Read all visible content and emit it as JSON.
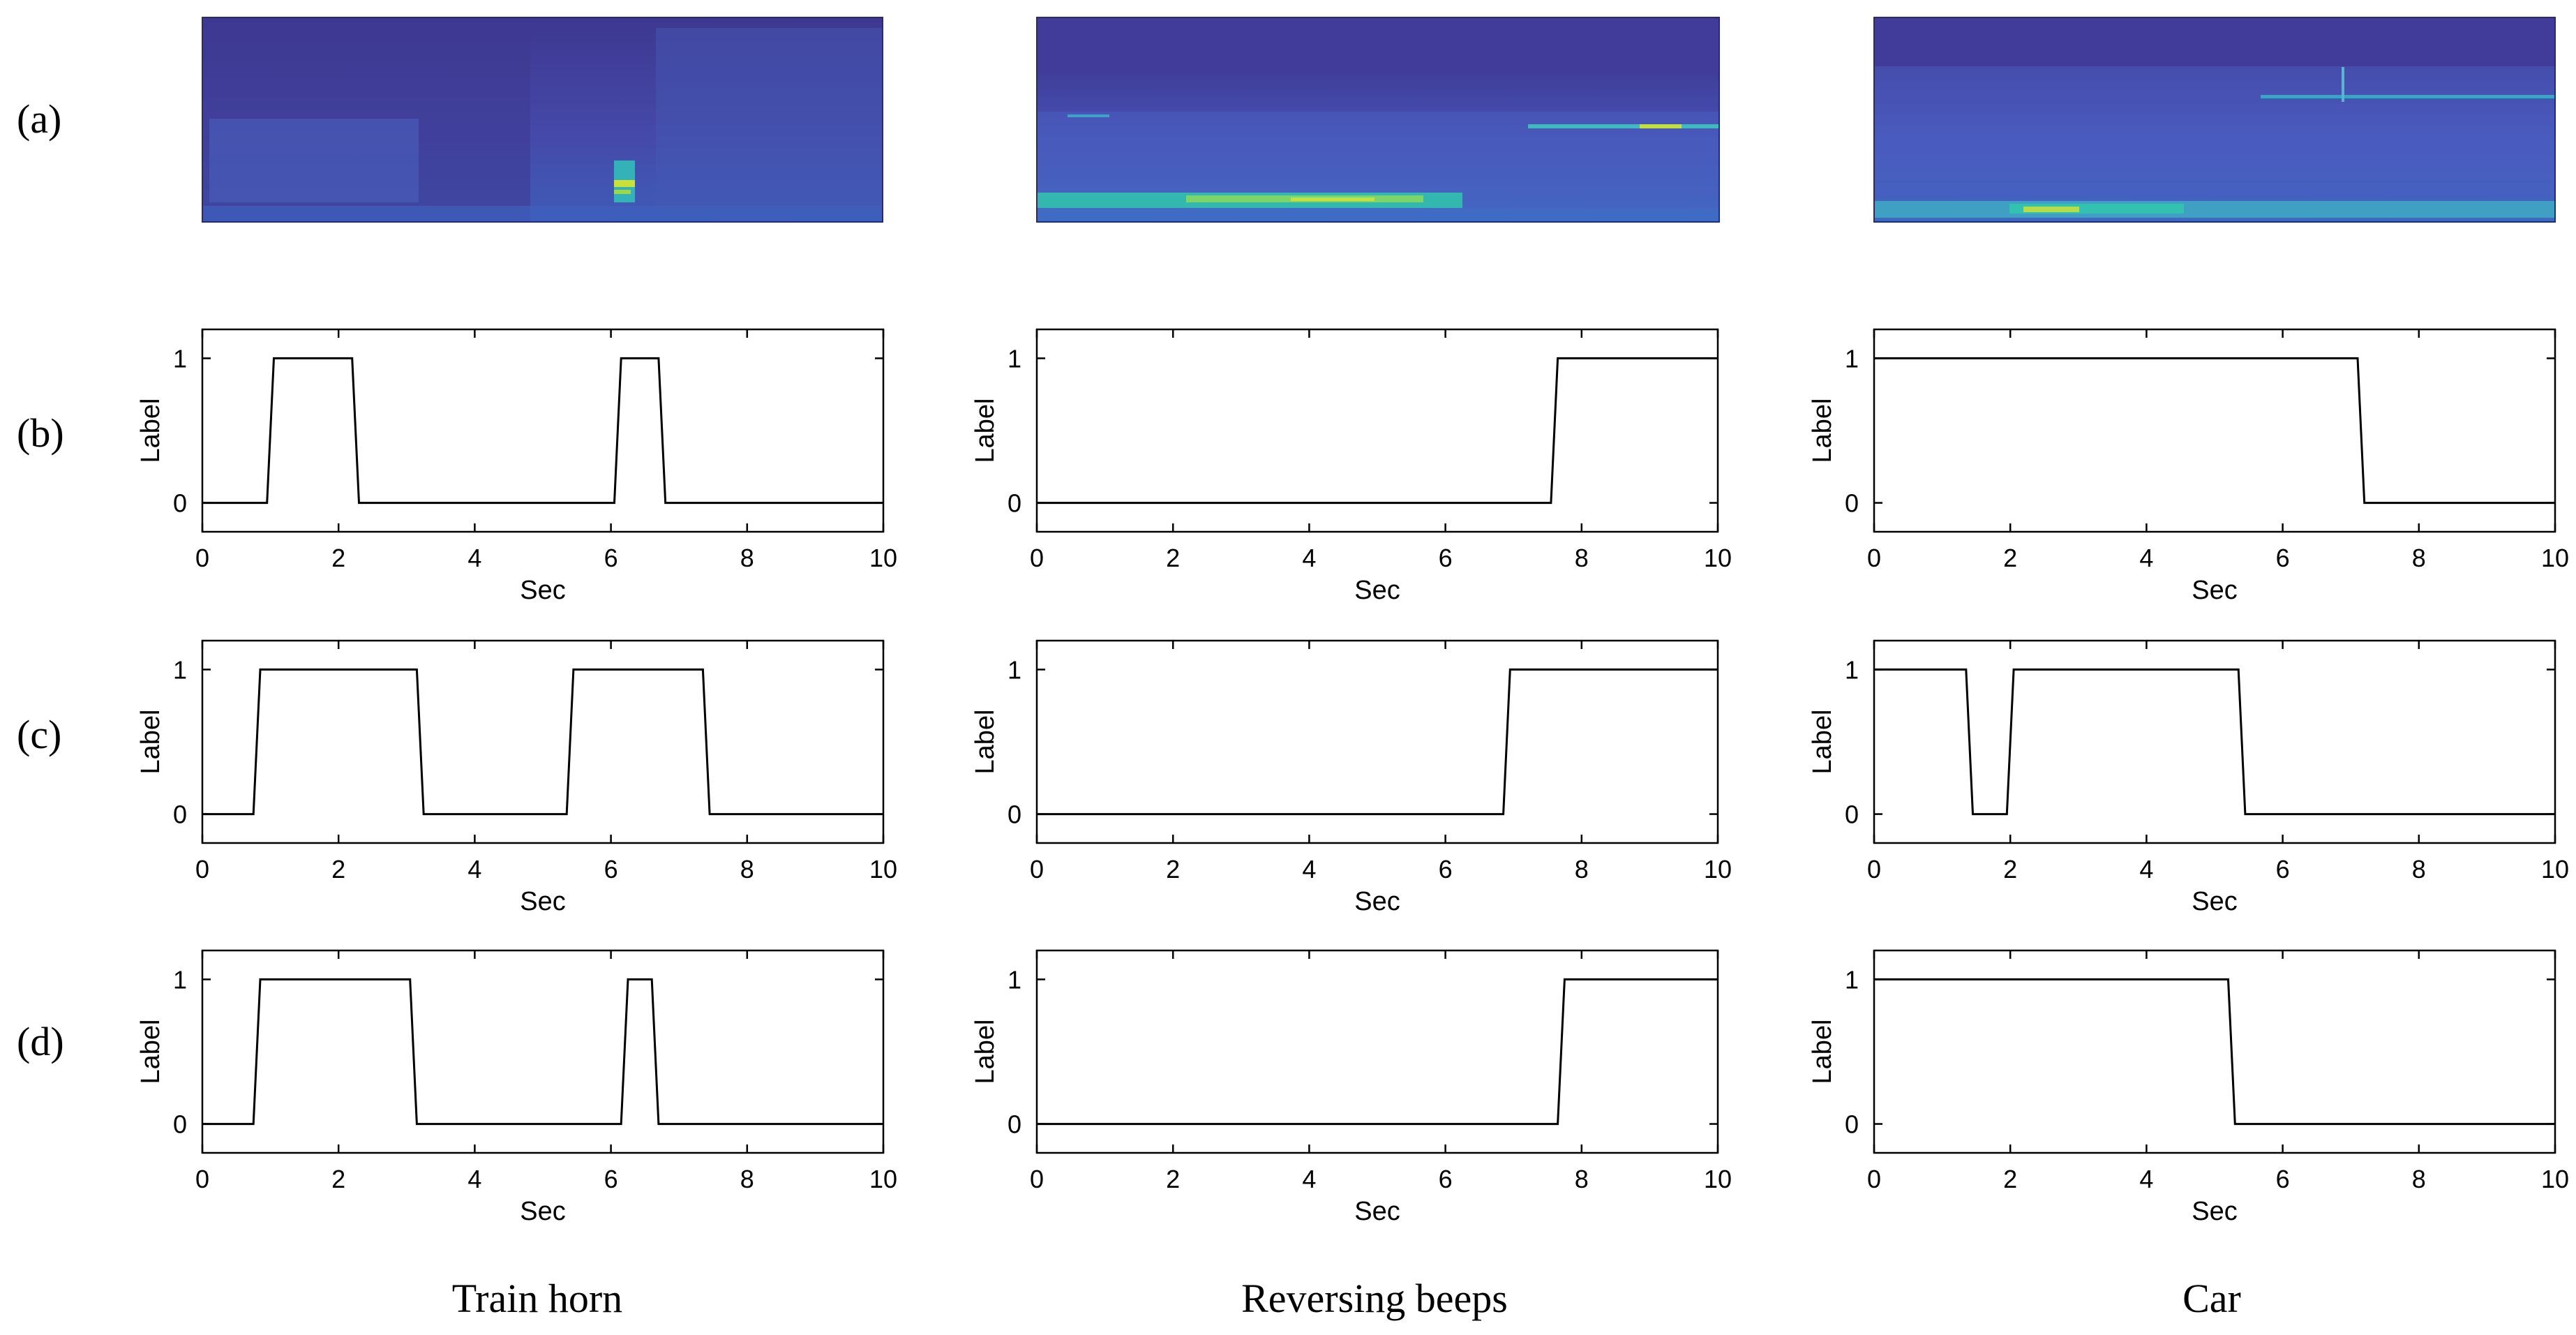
{
  "row_labels": [
    "(a)",
    "(b)",
    "(c)",
    "(d)"
  ],
  "column_titles": [
    "Train horn",
    "Reversing beeps",
    "Car"
  ],
  "chart_data": [
    {
      "type": "line",
      "column": "Train horn",
      "row": "(b)",
      "xlabel": "Sec",
      "ylabel": "Label",
      "xlim": [
        0,
        10
      ],
      "ylim": [
        -0.2,
        1.2
      ],
      "xticks": [
        0,
        2,
        4,
        6,
        8,
        10
      ],
      "yticks": [
        0,
        1
      ],
      "x": [
        0,
        0.95,
        1.05,
        2.2,
        2.3,
        6.05,
        6.15,
        6.7,
        6.8,
        10
      ],
      "y": [
        0,
        0,
        1,
        1,
        0,
        0,
        1,
        1,
        0,
        0
      ]
    },
    {
      "type": "line",
      "column": "Reversing beeps",
      "row": "(b)",
      "xlabel": "Sec",
      "ylabel": "Label",
      "xlim": [
        0,
        10
      ],
      "ylim": [
        -0.2,
        1.2
      ],
      "xticks": [
        0,
        2,
        4,
        6,
        8,
        10
      ],
      "yticks": [
        0,
        1
      ],
      "x": [
        0,
        7.55,
        7.65,
        10
      ],
      "y": [
        0,
        0,
        1,
        1
      ]
    },
    {
      "type": "line",
      "column": "Car",
      "row": "(b)",
      "xlabel": "Sec",
      "ylabel": "Label",
      "xlim": [
        0,
        10
      ],
      "ylim": [
        -0.2,
        1.2
      ],
      "xticks": [
        0,
        2,
        4,
        6,
        8,
        10
      ],
      "yticks": [
        0,
        1
      ],
      "x": [
        0,
        7.1,
        7.2,
        10
      ],
      "y": [
        1,
        1,
        0,
        0
      ]
    },
    {
      "type": "line",
      "column": "Train horn",
      "row": "(c)",
      "xlabel": "Sec",
      "ylabel": "Label",
      "xlim": [
        0,
        10
      ],
      "ylim": [
        -0.2,
        1.2
      ],
      "xticks": [
        0,
        2,
        4,
        6,
        8,
        10
      ],
      "yticks": [
        0,
        1
      ],
      "x": [
        0,
        0.75,
        0.85,
        3.15,
        3.25,
        5.35,
        5.45,
        7.35,
        7.45,
        10
      ],
      "y": [
        0,
        0,
        1,
        1,
        0,
        0,
        1,
        1,
        0,
        0
      ]
    },
    {
      "type": "line",
      "column": "Reversing beeps",
      "row": "(c)",
      "xlabel": "Sec",
      "ylabel": "Label",
      "xlim": [
        0,
        10
      ],
      "ylim": [
        -0.2,
        1.2
      ],
      "xticks": [
        0,
        2,
        4,
        6,
        8,
        10
      ],
      "yticks": [
        0,
        1
      ],
      "x": [
        0,
        6.85,
        6.95,
        10
      ],
      "y": [
        0,
        0,
        1,
        1
      ]
    },
    {
      "type": "line",
      "column": "Car",
      "row": "(c)",
      "xlabel": "Sec",
      "ylabel": "Label",
      "xlim": [
        0,
        10
      ],
      "ylim": [
        -0.2,
        1.2
      ],
      "xticks": [
        0,
        2,
        4,
        6,
        8,
        10
      ],
      "yticks": [
        0,
        1
      ],
      "x": [
        0,
        1.35,
        1.45,
        1.95,
        2.05,
        5.35,
        5.45,
        10
      ],
      "y": [
        1,
        1,
        0,
        0,
        1,
        1,
        0,
        0
      ]
    },
    {
      "type": "line",
      "column": "Train horn",
      "row": "(d)",
      "xlabel": "Sec",
      "ylabel": "Label",
      "xlim": [
        0,
        10
      ],
      "ylim": [
        -0.2,
        1.2
      ],
      "xticks": [
        0,
        2,
        4,
        6,
        8,
        10
      ],
      "yticks": [
        0,
        1
      ],
      "x": [
        0,
        0.75,
        0.85,
        3.05,
        3.15,
        6.15,
        6.25,
        6.6,
        6.7,
        10
      ],
      "y": [
        0,
        0,
        1,
        1,
        0,
        0,
        1,
        1,
        0,
        0
      ]
    },
    {
      "type": "line",
      "column": "Reversing beeps",
      "row": "(d)",
      "xlabel": "Sec",
      "ylabel": "Label",
      "xlim": [
        0,
        10
      ],
      "ylim": [
        -0.2,
        1.2
      ],
      "xticks": [
        0,
        2,
        4,
        6,
        8,
        10
      ],
      "yticks": [
        0,
        1
      ],
      "x": [
        0,
        7.65,
        7.75,
        10
      ],
      "y": [
        0,
        0,
        1,
        1
      ]
    },
    {
      "type": "line",
      "column": "Car",
      "row": "(d)",
      "xlabel": "Sec",
      "ylabel": "Label",
      "xlim": [
        0,
        10
      ],
      "ylim": [
        -0.2,
        1.2
      ],
      "xticks": [
        0,
        2,
        4,
        6,
        8,
        10
      ],
      "yticks": [
        0,
        1
      ],
      "x": [
        0,
        5.2,
        5.3,
        10
      ],
      "y": [
        1,
        1,
        0,
        0
      ]
    }
  ],
  "spectrograms": [
    {
      "column": "Train horn",
      "colormap": [
        "#3b3a94",
        "#4a58c4",
        "#2f8fd6",
        "#33c2b0",
        "#c9e03a"
      ],
      "background": "#413c9a"
    },
    {
      "column": "Reversing beeps",
      "colormap": [
        "#3b3a94",
        "#4a58c4",
        "#2f8fd6",
        "#33c2b0",
        "#c9e03a"
      ],
      "background": "#413c9a"
    },
    {
      "column": "Car",
      "colormap": [
        "#3b3a94",
        "#4a58c4",
        "#2f8fd6",
        "#33c2b0",
        "#c9e03a"
      ],
      "background": "#413c9a"
    }
  ]
}
